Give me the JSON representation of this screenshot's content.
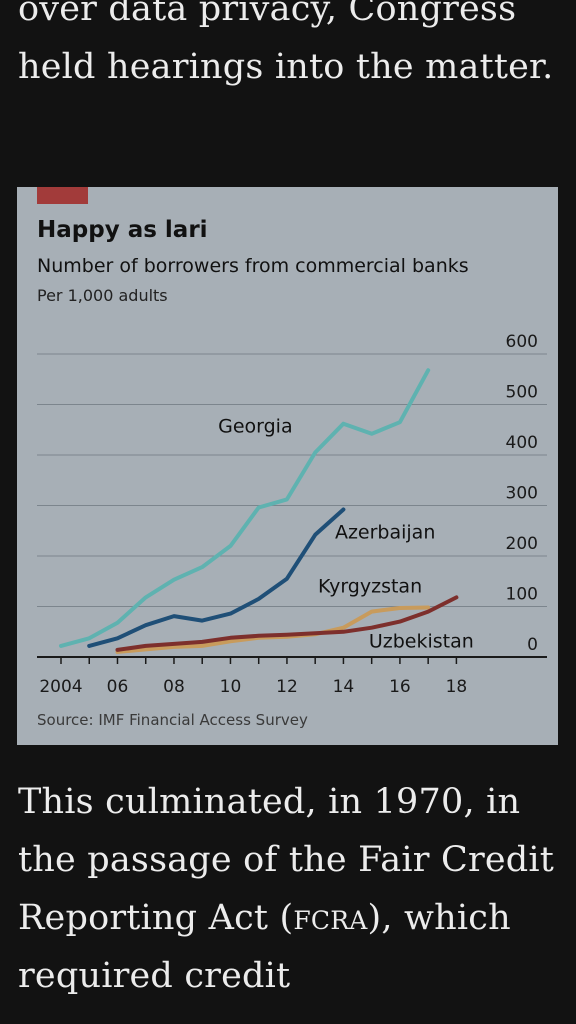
{
  "article": {
    "paragraph_top": "over data privacy, Congress held hearings into the matter.",
    "paragraph_bottom_a": "This culminated, in 1970, in the passage of the Fair Credit Reporting Act (",
    "paragraph_bottom_abbr": "fcra",
    "paragraph_bottom_b": "), which required credit"
  },
  "colors": {
    "background": "#121212",
    "text": "#ececec",
    "card": "#a7afb6",
    "accent_tag": "#a23b3a",
    "Georgia": "#5fb2b0",
    "Azerbaijan": "#1f4f77",
    "Kyrgyzstan": "#c89b5c",
    "Uzbekistan": "#7d2f2c"
  },
  "chart_data": {
    "type": "line",
    "title": "Happy as lari",
    "subtitle": "Number of borrowers from commercial banks",
    "unit_note": "Per 1,000 adults",
    "source": "Source: IMF Financial Access Survey",
    "x_tick_labels": [
      "2004",
      "06",
      "08",
      "10",
      "12",
      "14",
      "16",
      "18"
    ],
    "x_tick_values": [
      2004,
      2006,
      2008,
      2010,
      2012,
      2014,
      2016,
      2018
    ],
    "xlim": [
      2004,
      2018.8
    ],
    "y_ticks": [
      0,
      100,
      200,
      300,
      400,
      500,
      600
    ],
    "ylim": [
      0,
      600
    ],
    "grid": true,
    "series": [
      {
        "name": "Georgia",
        "color": "#5fb2b0",
        "x": [
          2004,
          2005,
          2006,
          2007,
          2008,
          2009,
          2010,
          2011,
          2012,
          2013,
          2014,
          2015,
          2016,
          2017
        ],
        "y": [
          22,
          37,
          68,
          118,
          153,
          178,
          220,
          296,
          312,
          405,
          462,
          442,
          465,
          568
        ]
      },
      {
        "name": "Azerbaijan",
        "color": "#1f4f77",
        "x": [
          2005,
          2006,
          2007,
          2008,
          2009,
          2010,
          2011,
          2012,
          2013,
          2014
        ],
        "y": [
          22,
          37,
          63,
          81,
          72,
          86,
          115,
          155,
          242,
          292
        ]
      },
      {
        "name": "Kyrgyzstan",
        "color": "#c89b5c",
        "x": [
          2006,
          2007,
          2008,
          2009,
          2010,
          2011,
          2012,
          2013,
          2014,
          2015,
          2016,
          2017
        ],
        "y": [
          10,
          15,
          20,
          22,
          31,
          38,
          40,
          45,
          58,
          90,
          97,
          98
        ]
      },
      {
        "name": "Uzbekistan",
        "color": "#7d2f2c",
        "x": [
          2006,
          2007,
          2008,
          2009,
          2010,
          2011,
          2012,
          2013,
          2014,
          2015,
          2016,
          2017,
          2018
        ],
        "y": [
          14,
          22,
          26,
          30,
          38,
          42,
          44,
          47,
          50,
          58,
          70,
          90,
          118
        ]
      }
    ]
  }
}
